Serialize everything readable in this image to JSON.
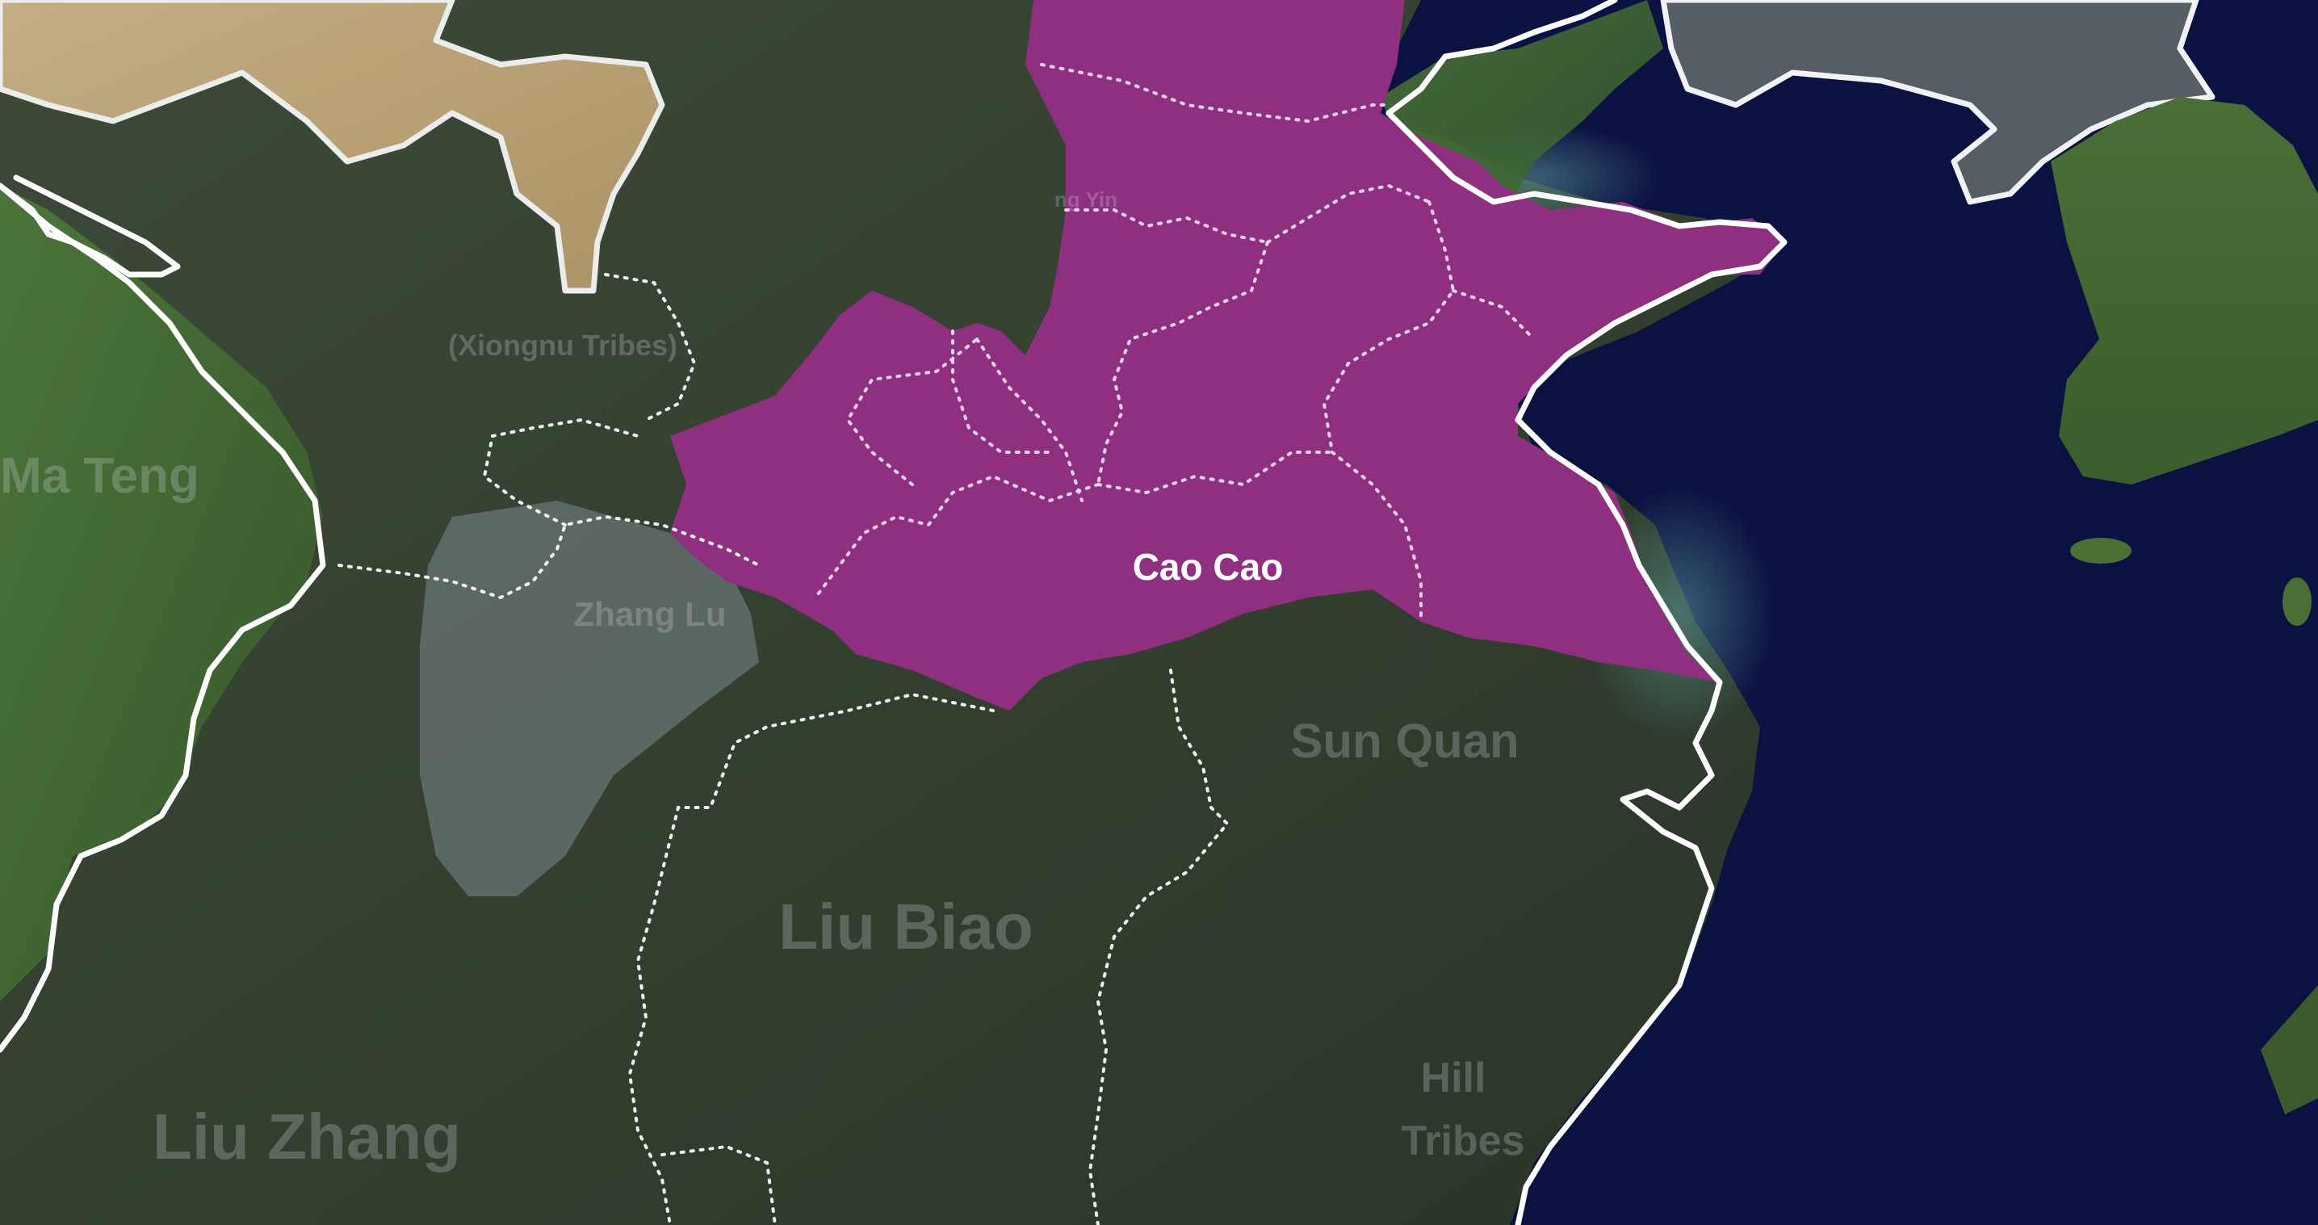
{
  "map": {
    "labels": {
      "cao_cao": "Cao Cao",
      "sun_quan": "Sun Quan",
      "liu_biao": "Liu Biao",
      "liu_zhang": "Liu Zhang",
      "zhang_lu": "Zhang Lu",
      "xiongnu": "(Xiongnu Tribes)",
      "ma_teng": "Ma Teng",
      "hill": "Hill",
      "tribes": "Tribes",
      "yuan_fragment": "ng Yin"
    },
    "colors": {
      "cao_cao_territory": "#8f2f80",
      "sea": "#0b1140",
      "highlight_text": "#ffffff",
      "borders": "#ffffff"
    }
  }
}
